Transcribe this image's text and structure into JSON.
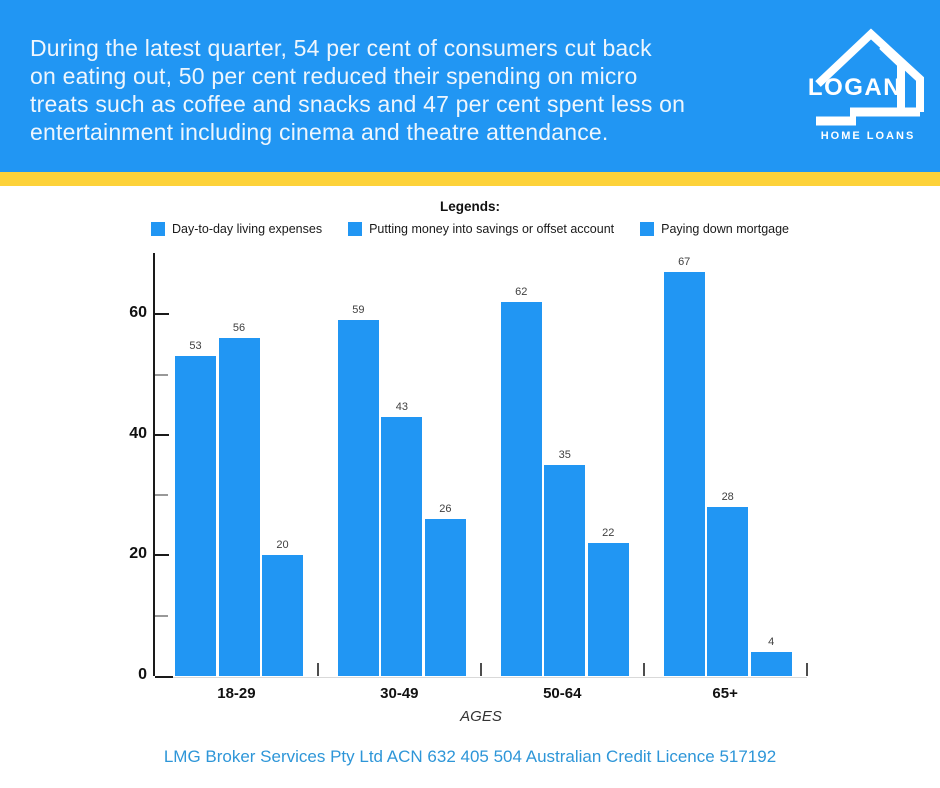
{
  "header": {
    "lines": [
      "During the latest quarter, 54 per cent of consumers cut back",
      "on eating out, 50 per cent reduced their spending on micro",
      "treats such as coffee and snacks and 47 per cent spent less on",
      "entertainment including cinema and theatre attendance."
    ],
    "background_color": "#2196f3",
    "text_color": "#eef6fd"
  },
  "logo": {
    "name": "LOGAN",
    "subtitle": "HOME LOANS",
    "color": "#ffffff"
  },
  "divider_color": "#fdd23a",
  "legend": {
    "title": "Legends:"
  },
  "chart_data": {
    "type": "bar",
    "title": "",
    "categories": [
      "18-29",
      "30-49",
      "50-64",
      "65+"
    ],
    "series": [
      {
        "name": "Day-to-day living expenses",
        "values": [
          53,
          59,
          62,
          67
        ]
      },
      {
        "name": "Putting money into savings or offset account",
        "values": [
          56,
          43,
          35,
          28
        ]
      },
      {
        "name": "Paying down mortgage",
        "values": [
          20,
          26,
          22,
          4
        ]
      }
    ],
    "xlabel": "AGES",
    "ylabel": "",
    "ylim": [
      0,
      70
    ],
    "y_ticks_labeled": [
      0,
      20,
      40,
      60
    ],
    "y_ticks_minor": [
      10,
      30,
      50
    ],
    "bar_color": "#2196f3",
    "value_labels_shown": true,
    "legend_position": "top",
    "grid": false
  },
  "footer": {
    "text": "LMG Broker Services Pty Ltd ACN 632 405 504 Australian Credit Licence 517192",
    "color": "#2e96d8"
  }
}
